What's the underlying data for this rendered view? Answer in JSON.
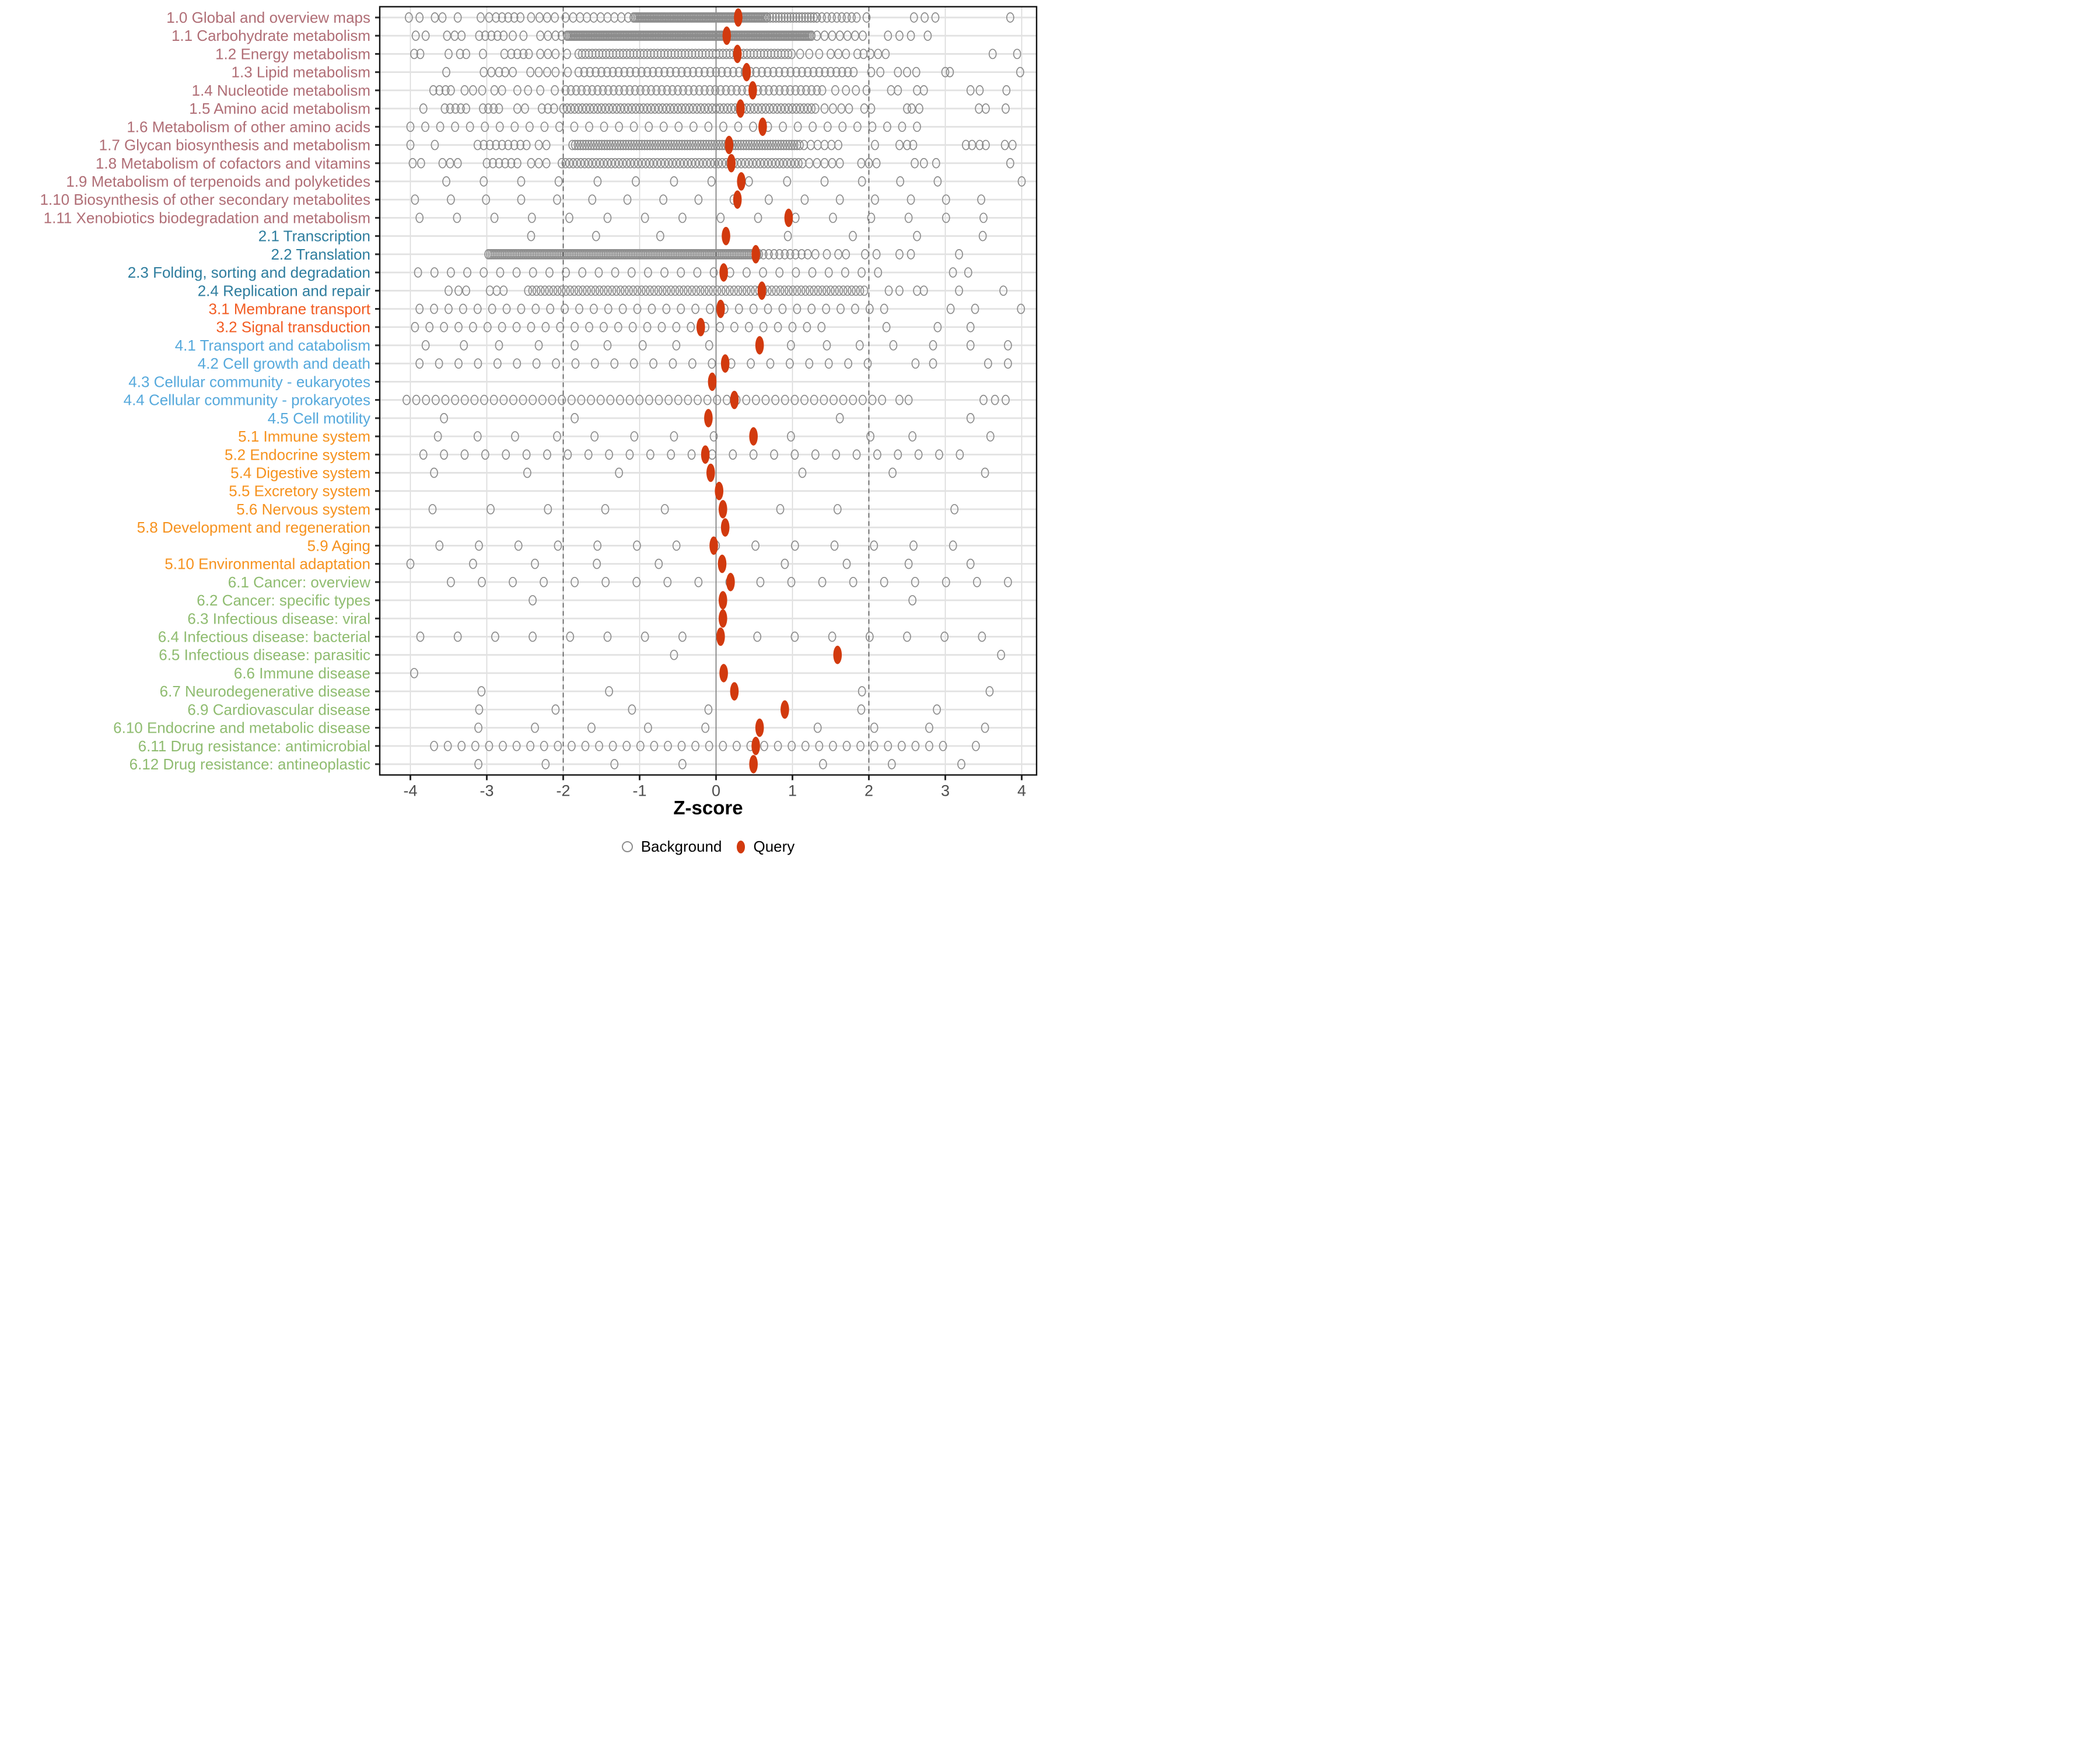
{
  "chart_data": {
    "type": "scatter",
    "title": "",
    "xlabel": "Z-score",
    "x_ticks": [
      -4,
      -3,
      -2,
      -1,
      0,
      1,
      2,
      3,
      4
    ],
    "xlim": [
      -4.42,
      4.19
    ],
    "grid": "vertical-only",
    "reference_lines": {
      "solid_at": 0,
      "dashed_at": [
        -2,
        2
      ]
    },
    "legend_position": "bottom",
    "legend": [
      {
        "label": "Background",
        "marker": "open-gray-circle"
      },
      {
        "label": "Query",
        "marker": "filled-red-dot"
      }
    ],
    "colors": {
      "query": "#D23A0E",
      "background_stroke": "#8C8C8C",
      "row_band": "#E2E2E2",
      "gridline": "#D9D9D9",
      "zero_line": "#6E6E6E",
      "threshold_line": "#4A4A4A",
      "axis_text": "#4D4D4D",
      "tick_mark": "#2B2B2B",
      "panel_border": "#111111",
      "groups": {
        "1": "#B06E76",
        "2": "#2E7D9E",
        "3": "#F25C22",
        "4": "#56A9DC",
        "5": "#F6921E",
        "6": "#8FBC70"
      }
    },
    "rows": [
      {
        "label": "1.0 Global and overview maps",
        "group": "1",
        "query": 0.29,
        "bg": [
          -4.02,
          -3.88,
          -3.68,
          -3.58,
          -3.38,
          -3.08,
          -2.97,
          -2.88,
          -2.8,
          -2.72,
          -2.64,
          -2.56,
          -2.42,
          -2.31,
          -2.21,
          -2.11,
          -1.97,
          -1.87,
          -1.78,
          -1.69,
          -1.6,
          -1.51,
          -1.42,
          -1.33,
          -1.24,
          -1.15,
          1.97,
          2.59,
          2.73,
          2.87,
          3.85
        ],
        "bg_runs": [
          [
            -1.08,
            0.67,
            0.02
          ],
          [
            0.67,
            1.32,
            0.038
          ],
          [
            1.32,
            1.84,
            0.065
          ]
        ]
      },
      {
        "label": "1.1 Carbohydrate metabolism",
        "group": "1",
        "query": 0.14,
        "bg": [
          -3.93,
          -3.8,
          -3.52,
          -3.42,
          -3.33,
          -3.1,
          -3.02,
          -2.94,
          -2.86,
          -2.78,
          -2.66,
          -2.52,
          -2.3,
          -2.2,
          -2.1,
          -2.02,
          1.32,
          1.42,
          1.52,
          1.62,
          1.72,
          1.82,
          1.92,
          2.25,
          2.4,
          2.55,
          2.77
        ],
        "bg_runs": [
          [
            -1.95,
            1.25,
            0.02
          ]
        ]
      },
      {
        "label": "1.2 Energy metabolism",
        "group": "1",
        "query": 0.28,
        "bg": [
          -3.95,
          -3.87,
          -3.5,
          -3.35,
          -3.27,
          -3.05,
          -2.77,
          -2.68,
          -2.6,
          -2.52,
          -2.45,
          -2.3,
          -2.2,
          -2.1,
          -1.95,
          1.1,
          1.22,
          1.35,
          1.5,
          1.6,
          1.7,
          1.85,
          1.93,
          2.02,
          2.12,
          2.22,
          3.62,
          3.94
        ],
        "bg_runs": [
          [
            -1.8,
            1.02,
            0.045
          ]
        ]
      },
      {
        "label": "1.3 Lipid metabolism",
        "group": "1",
        "query": 0.4,
        "bg": [
          -3.53,
          -3.04,
          -2.94,
          -2.84,
          -2.76,
          -2.66,
          -2.43,
          -2.32,
          -2.21,
          -2.1,
          -1.94,
          2.03,
          2.15,
          2.38,
          2.5,
          2.62,
          3.0,
          3.06,
          3.98
        ],
        "bg_runs": [
          [
            -1.8,
            1.82,
            0.075
          ]
        ]
      },
      {
        "label": "1.4 Nucleotide metabolism",
        "group": "1",
        "query": 0.48,
        "bg": [
          -3.7,
          -3.62,
          -3.54,
          -3.47,
          -3.29,
          -3.18,
          -3.06,
          -2.9,
          -2.8,
          -2.6,
          -2.46,
          -2.3,
          -2.11,
          1.56,
          1.7,
          1.83,
          1.97,
          2.29,
          2.38,
          2.63,
          2.72,
          3.33,
          3.45,
          3.8
        ],
        "bg_runs": [
          [
            -1.97,
            1.45,
            0.07
          ]
        ]
      },
      {
        "label": "1.5 Amino acid metabolism",
        "group": "1",
        "query": 0.32,
        "bg": [
          -3.83,
          -3.55,
          -3.48,
          -3.41,
          -3.34,
          -3.27,
          -3.05,
          -2.98,
          -2.91,
          -2.84,
          -2.6,
          -2.5,
          -2.28,
          -2.2,
          -2.12,
          1.42,
          1.53,
          1.64,
          1.74,
          1.94,
          2.03,
          2.5,
          2.56,
          2.66,
          3.44,
          3.53,
          3.79
        ],
        "bg_runs": [
          [
            -2.0,
            1.32,
            0.05
          ]
        ]
      },
      {
        "label": "1.6 Metabolism of other amino acids",
        "group": "1",
        "query": 0.61,
        "bg": [],
        "bg_runs": [
          [
            -4.0,
            2.72,
            0.195
          ]
        ]
      },
      {
        "label": "1.7 Glycan biosynthesis and metabolism",
        "group": "1",
        "query": 0.17,
        "bg": [
          -4.0,
          -3.68,
          -3.12,
          -3.04,
          -2.96,
          -2.88,
          -2.8,
          -2.72,
          -2.64,
          -2.56,
          -2.48,
          -2.32,
          -2.22,
          2.08,
          2.4,
          2.5,
          2.58,
          3.27,
          3.35,
          3.45,
          3.53,
          3.78,
          3.88
        ],
        "bg_runs": [
          [
            -1.88,
            1.12,
            0.035
          ],
          [
            1.15,
            1.62,
            0.09
          ]
        ]
      },
      {
        "label": "1.8 Metabolism of cofactors and vitamins",
        "group": "1",
        "query": 0.2,
        "bg": [
          -3.97,
          -3.86,
          -3.58,
          -3.48,
          -3.38,
          -3.0,
          -2.92,
          -2.84,
          -2.76,
          -2.68,
          -2.6,
          -2.42,
          -2.32,
          -2.22,
          1.22,
          1.32,
          1.42,
          1.52,
          1.62,
          1.9,
          2.0,
          2.1,
          2.6,
          2.72,
          2.88,
          3.85
        ],
        "bg_runs": [
          [
            -2.02,
            1.15,
            0.05
          ]
        ]
      },
      {
        "label": "1.9 Metabolism of terpenoids and polyketides",
        "group": "1",
        "query": 0.33,
        "bg": [
          -3.53,
          -3.04,
          -2.55,
          -2.06,
          -1.55,
          -1.05,
          -0.55,
          -0.06,
          0.43,
          0.93,
          1.42,
          1.91,
          2.41,
          2.9,
          4.0
        ],
        "bg_runs": []
      },
      {
        "label": "1.10 Biosynthesis of other secondary metabolites",
        "group": "1",
        "query": 0.28,
        "bg": [
          -3.94,
          -3.47,
          -3.01,
          -2.55,
          -2.08,
          -1.62,
          -1.16,
          -0.69,
          -0.23,
          0.23,
          0.69,
          1.16,
          1.62,
          2.08,
          2.55,
          3.01,
          3.47
        ],
        "bg_runs": []
      },
      {
        "label": "1.11 Xenobiotics biodegradation and metabolism",
        "group": "1",
        "query": 0.95,
        "bg": [
          -3.88,
          -3.39,
          -2.9,
          -2.41,
          -1.92,
          -1.42,
          -0.93,
          -0.44,
          0.06,
          0.55,
          1.04,
          1.53,
          2.03,
          2.52,
          3.01,
          3.5
        ],
        "bg_runs": []
      },
      {
        "label": "2.1 Transcription",
        "group": "2",
        "query": 0.13,
        "bg": [
          -2.42,
          -1.57,
          -0.73,
          0.94,
          1.79,
          2.63,
          3.49
        ],
        "bg_runs": []
      },
      {
        "label": "2.2 Translation",
        "group": "2",
        "query": 0.52,
        "bg": [
          1.12,
          1.2,
          1.3,
          1.45,
          1.6,
          1.7,
          1.95,
          2.1,
          2.4,
          2.55,
          3.18
        ],
        "bg_runs": [
          [
            -2.98,
            0.58,
            0.022
          ],
          [
            0.62,
            1.06,
            0.07
          ]
        ]
      },
      {
        "label": "2.3 Folding, sorting and degradation",
        "group": "2",
        "query": 0.1,
        "bg": [
          3.1,
          3.3
        ],
        "bg_runs": [
          [
            -3.9,
            2.3,
            0.215
          ]
        ]
      },
      {
        "label": "2.4 Replication and repair",
        "group": "2",
        "query": 0.6,
        "bg": [
          -3.5,
          -3.37,
          -3.27,
          -2.96,
          -2.87,
          -2.78,
          2.26,
          2.4,
          2.63,
          2.72,
          3.18,
          3.76
        ],
        "bg_runs": [
          [
            -2.46,
            1.94,
            0.055
          ]
        ]
      },
      {
        "label": "3.1 Membrane transport",
        "group": "3",
        "query": 0.06,
        "bg": [
          3.07,
          3.39,
          3.99
        ],
        "bg_runs": [
          [
            -3.88,
            2.29,
            0.19
          ]
        ]
      },
      {
        "label": "3.2 Signal transduction",
        "group": "3",
        "query": -0.2,
        "bg": [
          2.23,
          2.9,
          3.33
        ],
        "bg_runs": [
          [
            -3.94,
            1.56,
            0.19
          ]
        ]
      },
      {
        "label": "4.1 Transport and catabolism",
        "group": "4",
        "query": 0.57,
        "bg": [
          -3.8,
          -3.3,
          -2.84,
          -2.32,
          -1.85,
          -1.42,
          -0.96,
          -0.52,
          -0.09,
          0.98,
          1.45,
          1.88,
          2.32,
          2.84,
          3.33,
          3.82
        ],
        "bg_runs": []
      },
      {
        "label": "4.2 Cell growth and death",
        "group": "4",
        "query": 0.12,
        "bg": [
          2.61,
          2.84,
          3.56,
          3.82
        ],
        "bg_runs": [
          [
            -3.88,
            2.08,
            0.255
          ]
        ]
      },
      {
        "label": "4.3 Cellular community - eukaryotes",
        "group": "4",
        "query": -0.05,
        "bg": [],
        "bg_runs": []
      },
      {
        "label": "4.4 Cellular community - prokaryotes",
        "group": "4",
        "query": 0.24,
        "bg": [
          2.4,
          2.52,
          3.5,
          3.65,
          3.79
        ],
        "bg_runs": [
          [
            -4.05,
            2.26,
            0.127
          ]
        ]
      },
      {
        "label": "4.5 Cell motility",
        "group": "4",
        "query": -0.1,
        "bg": [
          -3.56,
          -1.85,
          1.62,
          3.33
        ],
        "bg_runs": []
      },
      {
        "label": "5.1 Immune system",
        "group": "5",
        "query": 0.49,
        "bg": [
          -3.64,
          -3.12,
          -2.63,
          -2.08,
          -1.59,
          -1.07,
          -0.55,
          -0.03,
          0.98,
          2.02,
          2.57,
          3.59
        ],
        "bg_runs": []
      },
      {
        "label": "5.2 Endocrine system",
        "group": "5",
        "query": -0.14,
        "bg": [],
        "bg_runs": [
          [
            -3.83,
            3.29,
            0.27
          ]
        ]
      },
      {
        "label": "5.4 Digestive system",
        "group": "5",
        "query": -0.07,
        "bg": [
          -3.69,
          -2.47,
          -1.27,
          1.13,
          2.31,
          3.52
        ],
        "bg_runs": []
      },
      {
        "label": "5.5 Excretory system",
        "group": "5",
        "query": 0.04,
        "bg": [],
        "bg_runs": []
      },
      {
        "label": "5.6 Nervous system",
        "group": "5",
        "query": 0.09,
        "bg": [
          -3.71,
          -2.95,
          -2.2,
          -1.45,
          -0.67,
          0.84,
          1.59,
          3.12
        ],
        "bg_runs": []
      },
      {
        "label": "5.8 Development and regeneration",
        "group": "5",
        "query": 0.12,
        "bg": [],
        "bg_runs": []
      },
      {
        "label": "5.9 Aging",
        "group": "5",
        "query": -0.03,
        "bg": [],
        "bg_runs": [
          [
            -3.62,
            3.53,
            0.517
          ]
        ]
      },
      {
        "label": "5.10 Environmental adaptation",
        "group": "5",
        "query": 0.08,
        "bg": [
          -4.0,
          -3.18,
          -2.37,
          -1.56,
          -0.75,
          0.9,
          1.71,
          2.52,
          3.33
        ],
        "bg_runs": []
      },
      {
        "label": "6.1 Cancer: overview",
        "group": "6",
        "query": 0.19,
        "bg": [],
        "bg_runs": [
          [
            -3.47,
            3.85,
            0.405
          ]
        ]
      },
      {
        "label": "6.2 Cancer: specific types",
        "group": "6",
        "query": 0.09,
        "bg": [
          -2.4,
          2.57
        ],
        "bg_runs": []
      },
      {
        "label": "6.3 Infectious disease: viral",
        "group": "6",
        "query": 0.09,
        "bg": [],
        "bg_runs": []
      },
      {
        "label": "6.4 Infectious disease: bacterial",
        "group": "6",
        "query": 0.06,
        "bg": [],
        "bg_runs": [
          [
            -3.87,
            3.95,
            0.49
          ]
        ]
      },
      {
        "label": "6.5 Infectious disease: parasitic",
        "group": "6",
        "query": 1.59,
        "bg": [
          -0.55,
          3.73
        ],
        "bg_runs": []
      },
      {
        "label": "6.6 Immune disease",
        "group": "6",
        "query": 0.1,
        "bg": [
          -3.95
        ],
        "bg_runs": []
      },
      {
        "label": "6.7 Neurodegenerative disease",
        "group": "6",
        "query": 0.24,
        "bg": [
          -3.07,
          -1.4,
          1.91,
          3.58
        ],
        "bg_runs": []
      },
      {
        "label": "6.9 Cardiovascular disease",
        "group": "6",
        "query": 0.9,
        "bg": [
          -3.1,
          -2.1,
          -1.1,
          -0.1,
          1.9,
          2.89
        ],
        "bg_runs": []
      },
      {
        "label": "6.10 Endocrine and metabolic disease",
        "group": "6",
        "query": 0.57,
        "bg": [
          -3.11,
          -2.37,
          -1.63,
          -0.89,
          -0.14,
          1.33,
          2.07,
          2.79,
          3.52
        ],
        "bg_runs": []
      },
      {
        "label": "6.11 Drug resistance: antimicrobial",
        "group": "6",
        "query": 0.52,
        "bg": [
          3.4
        ],
        "bg_runs": [
          [
            -3.69,
            3.13,
            0.18
          ]
        ]
      },
      {
        "label": "6.12 Drug resistance: antineoplastic",
        "group": "6",
        "query": 0.49,
        "bg": [
          -3.11,
          -2.23,
          -1.33,
          -0.44,
          1.4,
          2.3,
          3.21
        ],
        "bg_runs": []
      }
    ]
  }
}
